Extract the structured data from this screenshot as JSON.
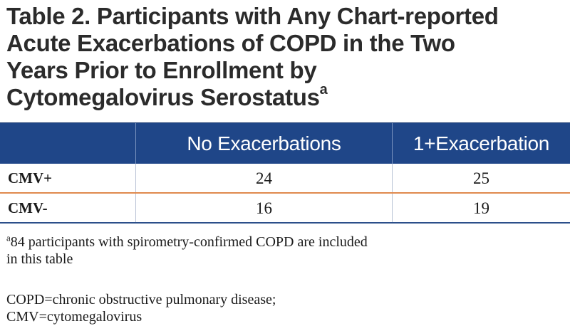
{
  "title": {
    "lines": [
      "Table 2. Participants with Any Chart-reported",
      "Acute Exacerbations of COPD in the Two",
      "Years Prior to Enrollment by",
      "Cytomegalovirus Serostatus"
    ],
    "superscript": "a"
  },
  "table": {
    "columns": [
      "",
      "No Exacerbations",
      "1+Exacerbation"
    ],
    "rows": [
      {
        "label": "CMV+",
        "values": [
          "24",
          "25"
        ]
      },
      {
        "label": "CMV-",
        "values": [
          "16",
          "19"
        ]
      }
    ]
  },
  "footnote": {
    "marker": "a",
    "lines": [
      "84 participants with spirometry-confirmed COPD are included",
      "in this table"
    ]
  },
  "abbreviations": {
    "lines": [
      "COPD=chronic obstructive pulmonary disease;",
      "CMV=cytomegalovirus"
    ]
  },
  "colors": {
    "header_background": "#1f4688",
    "header_text": "#ffffff",
    "title_text": "#2b2b2b",
    "row_separator_orange": "#e08a4e",
    "row_separator_blue": "#2c4f8a"
  }
}
